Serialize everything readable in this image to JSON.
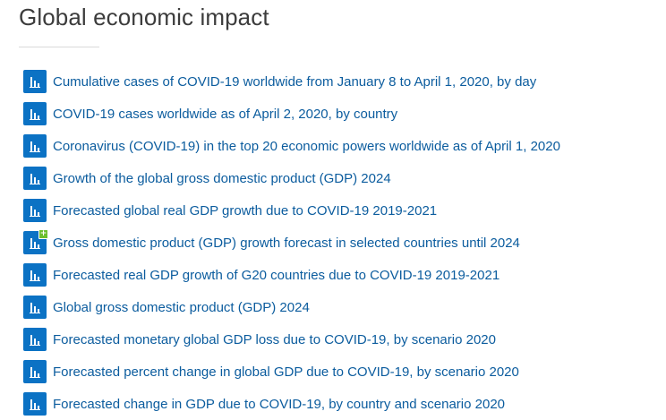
{
  "section": {
    "title": "Global economic impact"
  },
  "colors": {
    "icon_background": "#0b72c4",
    "link_text": "#0b5c9e",
    "premium_badge": "#6cbf2f"
  },
  "items": [
    {
      "label": "Cumulative cases of COVID-19 worldwide from January 8 to April 1, 2020, by day",
      "icon": "bar-chart-icon"
    },
    {
      "label": "COVID-19 cases worldwide as of April 2, 2020, by country",
      "icon": "bar-chart-icon"
    },
    {
      "label": "Coronavirus (COVID-19) in the top 20 economic powers worldwide as of April 1, 2020",
      "icon": "bar-chart-icon"
    },
    {
      "label": "Growth of the global gross domestic product (GDP) 2024",
      "icon": "bar-chart-icon"
    },
    {
      "label": "Forecasted global real GDP growth due to COVID-19 2019-2021",
      "icon": "bar-chart-icon"
    },
    {
      "label": "Gross domestic product (GDP) growth forecast in selected countries until 2024",
      "icon": "bar-chart-plus-icon",
      "badge": "+"
    },
    {
      "label": "Forecasted real GDP growth of G20 countries due to COVID-19 2019-2021",
      "icon": "bar-chart-icon"
    },
    {
      "label": "Global gross domestic product (GDP) 2024",
      "icon": "bar-chart-icon"
    },
    {
      "label": "Forecasted monetary global GDP loss due to COVID-19, by scenario 2020",
      "icon": "bar-chart-icon"
    },
    {
      "label": "Forecasted percent change in global GDP due to COVID-19, by scenario 2020",
      "icon": "bar-chart-icon"
    },
    {
      "label": "Forecasted change in GDP due to COVID-19, by country and scenario 2020",
      "icon": "bar-chart-icon"
    }
  ]
}
